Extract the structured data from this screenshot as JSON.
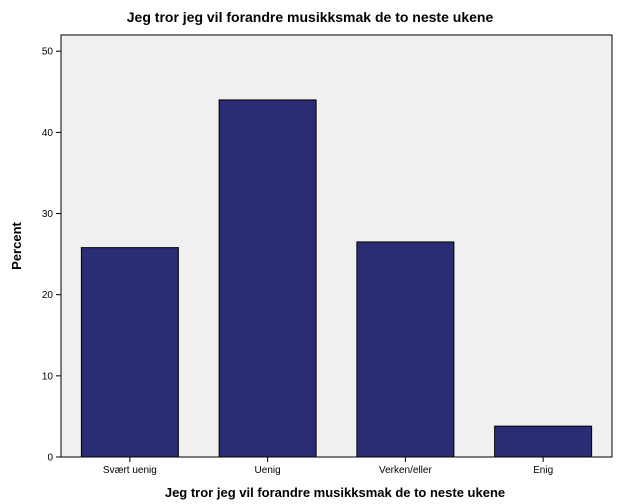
{
  "chart_data": {
    "type": "bar",
    "title": "Jeg tror jeg vil forandre musikksmak de to neste ukene",
    "xlabel": "Jeg tror jeg vil forandre musikksmak de to neste ukene",
    "ylabel": "Percent",
    "categories": [
      "Svært uenig",
      "Uenig",
      "Verken/eller",
      "Enig"
    ],
    "values": [
      25.8,
      44.0,
      26.5,
      3.8
    ],
    "ylim": [
      0,
      52
    ],
    "yticks": [
      0,
      10,
      20,
      30,
      40,
      50
    ],
    "grid": false,
    "legend": "none",
    "bar_color": "#2a2d73",
    "bar_edge_color": "#000000",
    "plot_background": "#f0f0f0"
  }
}
